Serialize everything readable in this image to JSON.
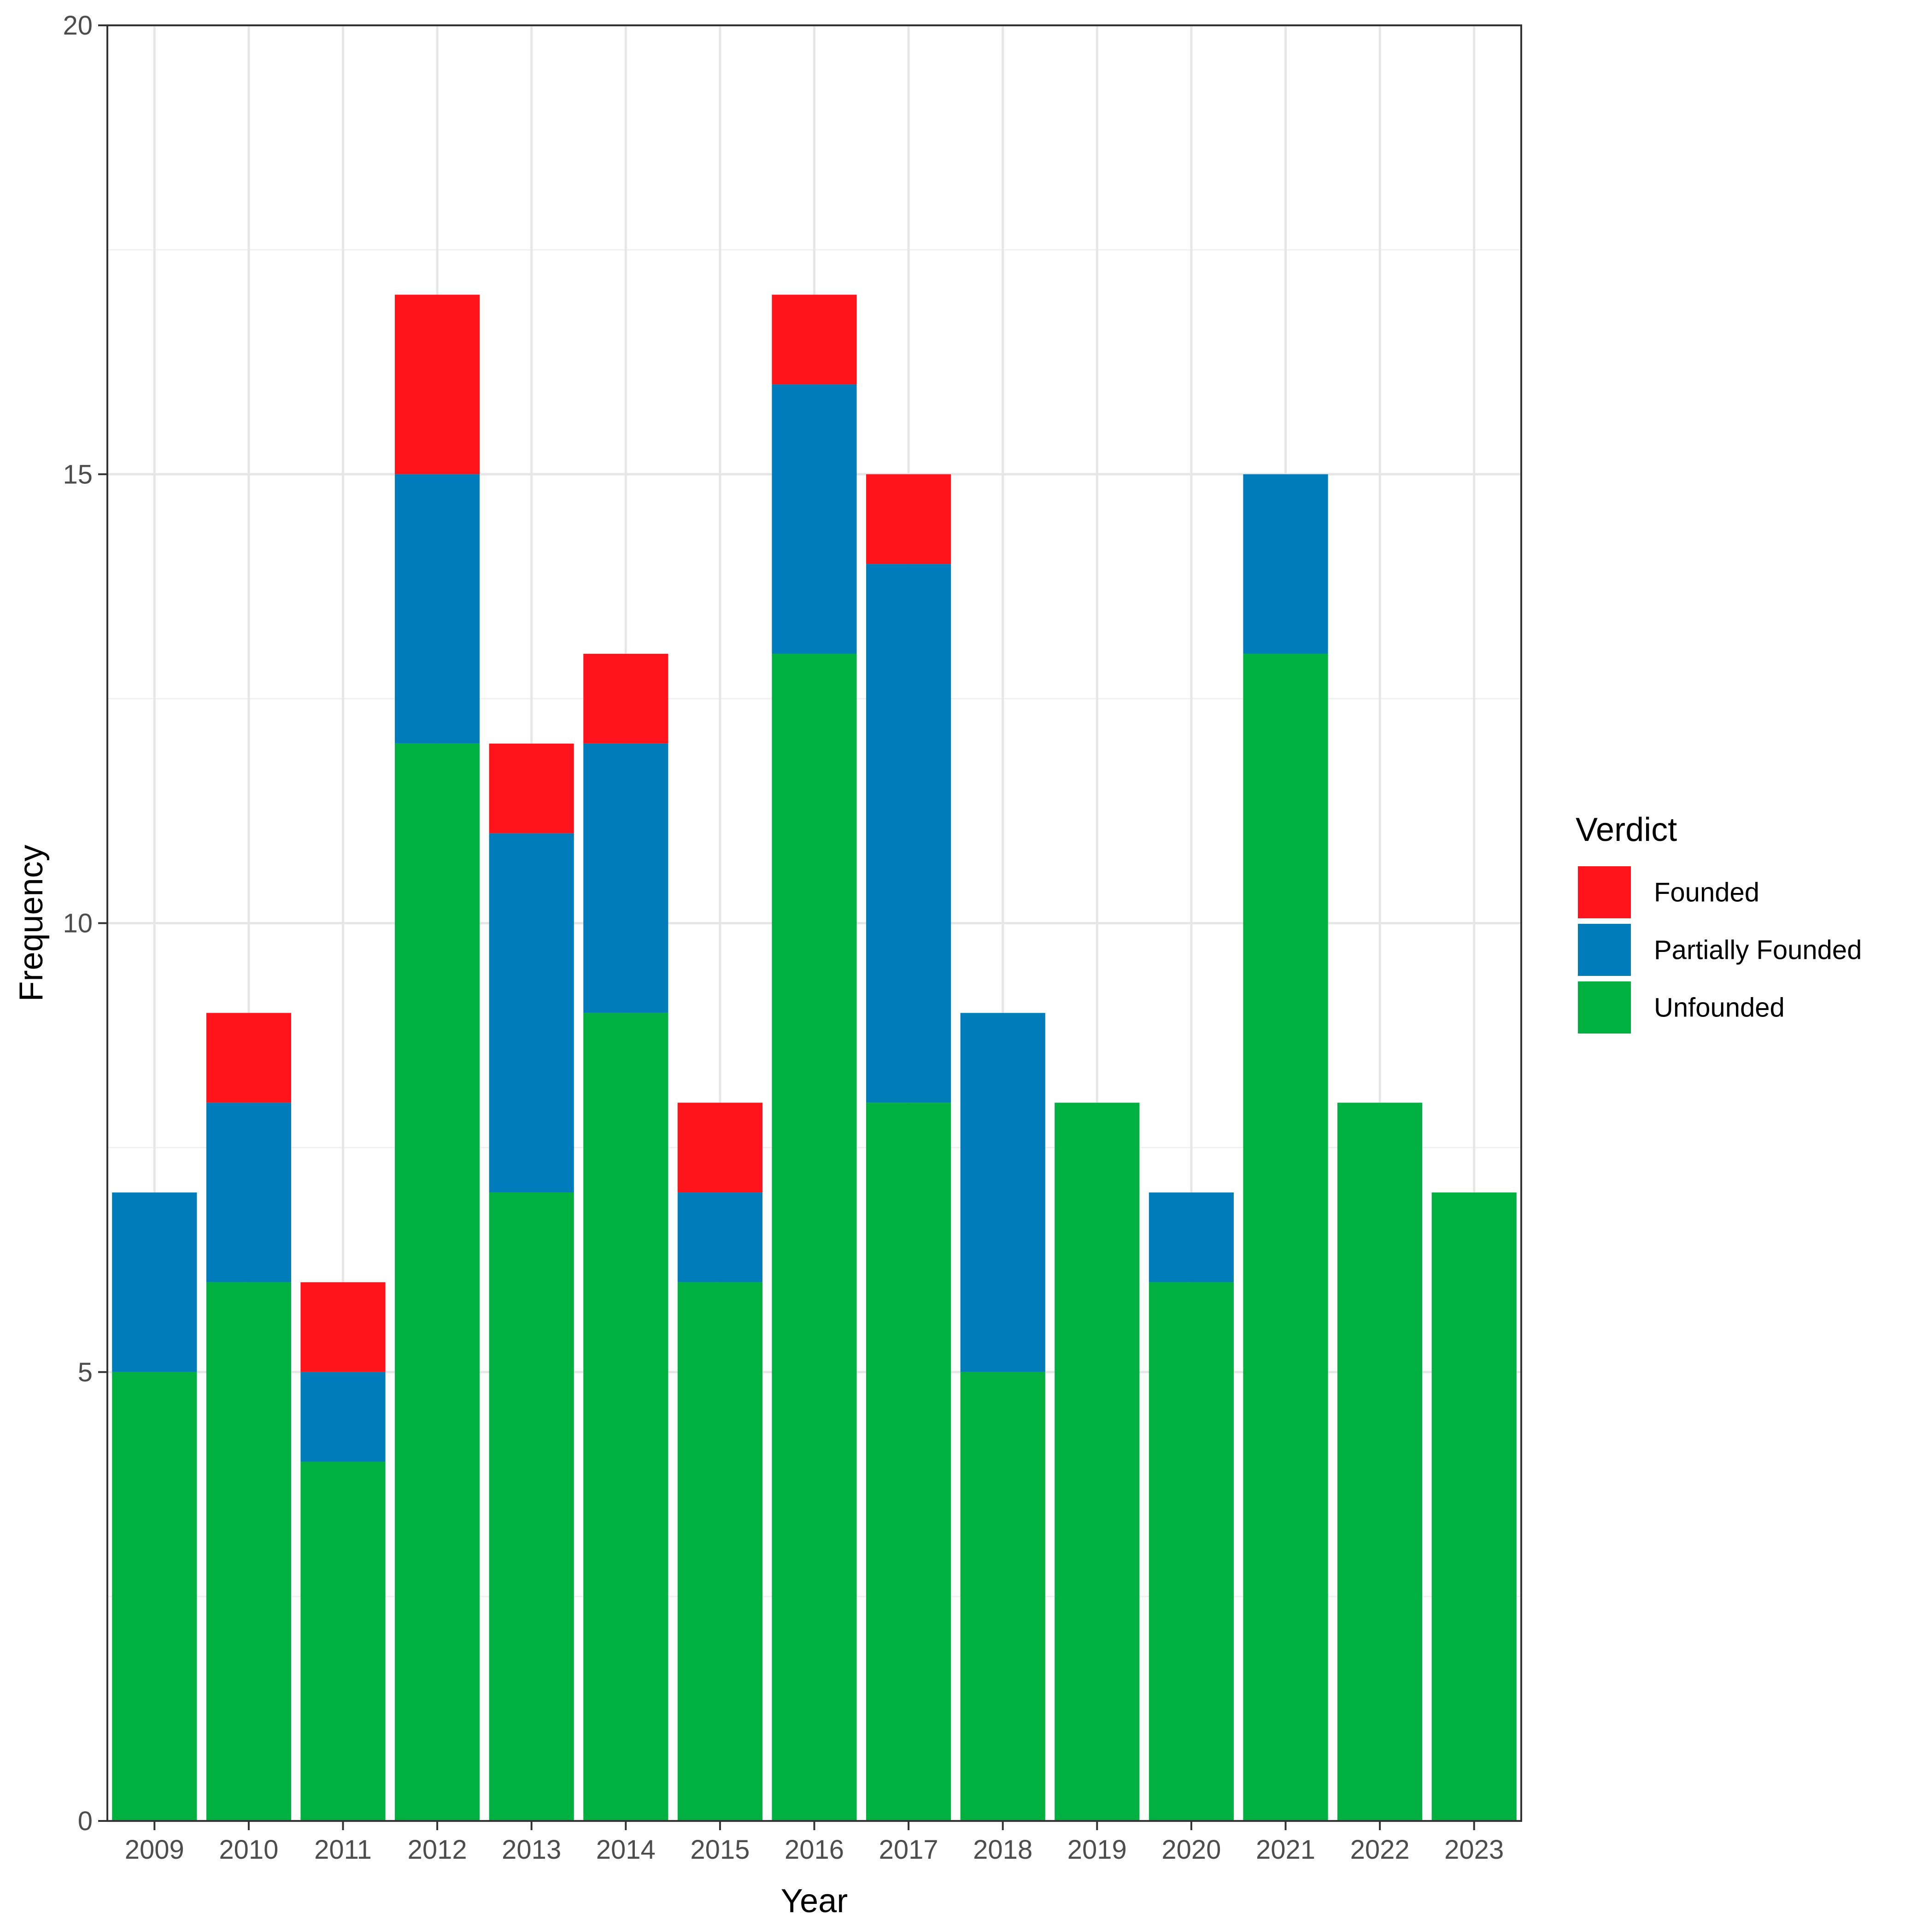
{
  "chart_data": {
    "type": "bar",
    "stacked": true,
    "title": "",
    "xlabel": "Year",
    "ylabel": "Frequency",
    "ylim": [
      0,
      20
    ],
    "yticks": [
      0,
      5,
      10,
      15,
      20
    ],
    "grid": true,
    "legend": {
      "title": "Verdict",
      "position": "right"
    },
    "categories": [
      "2009",
      "2010",
      "2011",
      "2012",
      "2013",
      "2014",
      "2015",
      "2016",
      "2017",
      "2018",
      "2019",
      "2020",
      "2021",
      "2022",
      "2023"
    ],
    "series": [
      {
        "name": "Unfounded",
        "color": "#00B040",
        "values": [
          5,
          6,
          4,
          12,
          7,
          9,
          6,
          13,
          8,
          5,
          8,
          6,
          13,
          8,
          7
        ]
      },
      {
        "name": "Partially Founded",
        "color": "#007CBA",
        "values": [
          2,
          2,
          1,
          3,
          4,
          3,
          1,
          3,
          6,
          4,
          0,
          1,
          2,
          0,
          0
        ]
      },
      {
        "name": "Founded",
        "color": "#FF141B",
        "values": [
          0,
          1,
          1,
          2,
          1,
          1,
          1,
          1,
          1,
          0,
          0,
          0,
          0,
          0,
          0
        ]
      }
    ],
    "legend_order": [
      "Founded",
      "Partially Founded",
      "Unfounded"
    ]
  }
}
